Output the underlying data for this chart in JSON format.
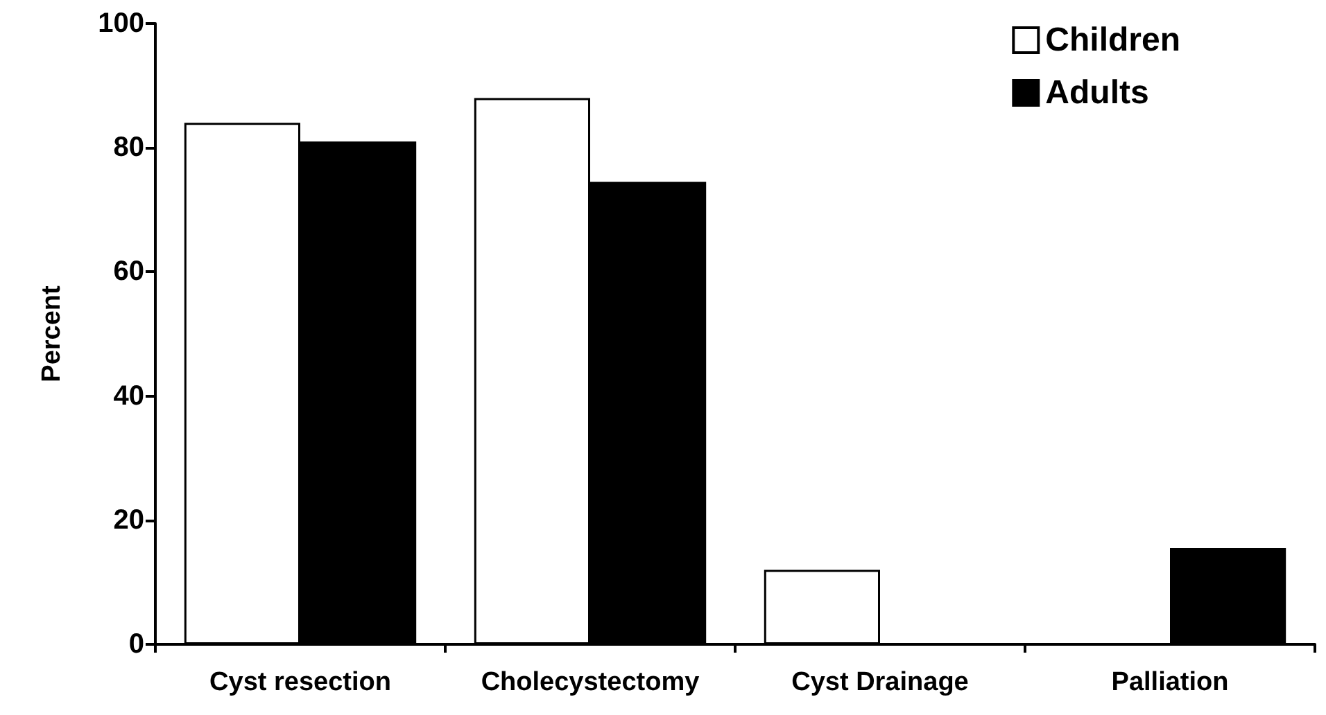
{
  "chart_data": {
    "type": "bar",
    "ylabel": "Percent",
    "categories": [
      "Cyst resection",
      "Cholecystectomy",
      "Cyst Drainage",
      "Palliation"
    ],
    "series": [
      {
        "name": "Children",
        "color": "#ffffff",
        "values": [
          84,
          88,
          12,
          0
        ]
      },
      {
        "name": "Adults",
        "color": "#000000",
        "values": [
          81,
          74.5,
          0,
          15.5
        ]
      }
    ],
    "ylim": [
      0,
      100
    ],
    "yticks": [
      0,
      20,
      40,
      60,
      80,
      100
    ],
    "grid": false,
    "legend": "top right"
  }
}
